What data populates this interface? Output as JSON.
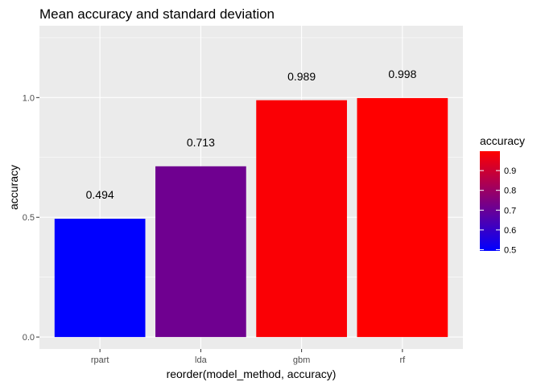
{
  "chart_data": {
    "type": "bar",
    "title": "Mean accuracy and standard deviation",
    "xlabel": "reorder(model_method, accuracy)",
    "ylabel": "accuracy",
    "categories": [
      "rpart",
      "lda",
      "gbm",
      "rf"
    ],
    "values": [
      0.494,
      0.713,
      0.989,
      0.998
    ],
    "data_labels": [
      "0.494",
      "0.713",
      "0.989",
      "0.998"
    ],
    "ylim": [
      -0.05,
      1.3
    ],
    "y_ticks": [
      0.0,
      0.5,
      1.0
    ],
    "y_tick_labels": [
      "0.0",
      "0.5",
      "1.0"
    ],
    "grid": true,
    "background": "#ebebeb",
    "legend": {
      "title": "accuracy",
      "placement": "right",
      "low_color": "#0000ff",
      "high_color": "#ff0000",
      "range": [
        0.494,
        0.998
      ],
      "ticks": [
        0.5,
        0.6,
        0.7,
        0.8,
        0.9
      ],
      "tick_labels": [
        "0.5",
        "0.6",
        "0.7",
        "0.8",
        "0.9"
      ]
    }
  }
}
